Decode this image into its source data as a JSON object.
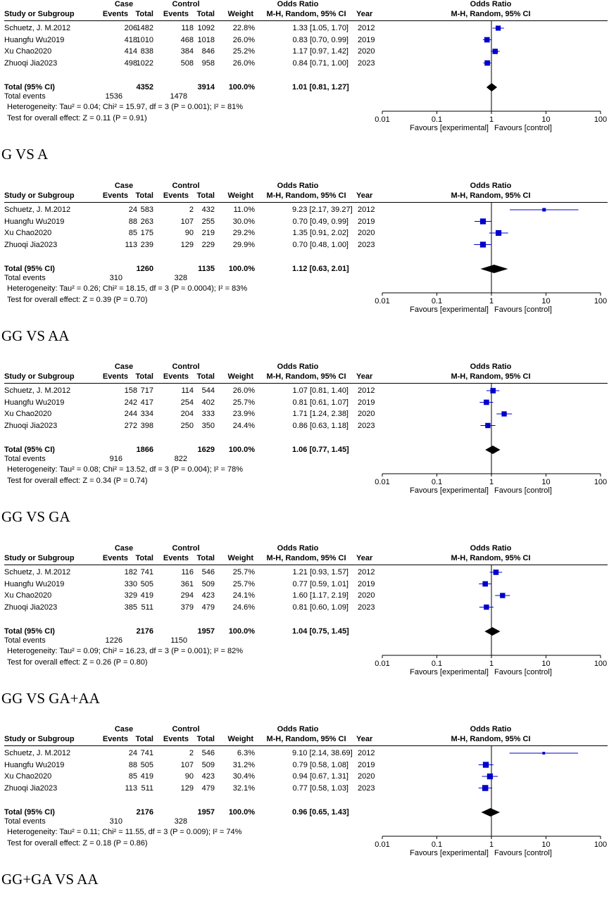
{
  "colors": {
    "marker": "#0000cc",
    "diamond": "#000000",
    "axis": "#000000"
  },
  "headers": {
    "case": "Case",
    "control": "Control",
    "odds_ratio": "Odds Ratio",
    "study": "Study or Subgroup",
    "events": "Events",
    "total": "Total",
    "weight": "Weight",
    "method": "M-H, Random, 95% CI",
    "year": "Year",
    "plot_title": "Odds Ratio",
    "plot_method": "M-H, Random, 95% CI"
  },
  "labels": {
    "total_ci": "Total (95% CI)",
    "total_events": "Total events",
    "favours_left": "Favours [experimental]",
    "favours_right": "Favours [control]"
  },
  "axis_ticks": [
    "0.01",
    "0.1",
    "1",
    "10",
    "100"
  ],
  "chart_data": [
    {
      "type": "forest",
      "title": "G VS A",
      "xscale": "log",
      "xlim": [
        0.01,
        100
      ],
      "studies": [
        {
          "name": "Schuetz, J. M.2012",
          "case_events": "206",
          "case_total": "1482",
          "ctrl_events": "118",
          "ctrl_total": "1092",
          "weight": "22.8%",
          "ci": "1.33 [1.05, 1.70]",
          "year": "2012",
          "or": 1.33,
          "lo": 1.05,
          "hi": 1.7
        },
        {
          "name": "Huangfu Wu2019",
          "case_events": "418",
          "case_total": "1010",
          "ctrl_events": "468",
          "ctrl_total": "1018",
          "weight": "26.0%",
          "ci": "0.83 [0.70, 0.99]",
          "year": "2019",
          "or": 0.83,
          "lo": 0.7,
          "hi": 0.99
        },
        {
          "name": "Xu Chao2020",
          "case_events": "414",
          "case_total": "838",
          "ctrl_events": "384",
          "ctrl_total": "846",
          "weight": "25.2%",
          "ci": "1.17 [0.97, 1.42]",
          "year": "2020",
          "or": 1.17,
          "lo": 0.97,
          "hi": 1.42
        },
        {
          "name": "Zhuoqi Jia2023",
          "case_events": "498",
          "case_total": "1022",
          "ctrl_events": "508",
          "ctrl_total": "958",
          "weight": "26.0%",
          "ci": "0.84 [0.71, 1.00]",
          "year": "2023",
          "or": 0.84,
          "lo": 0.71,
          "hi": 1.0
        }
      ],
      "total": {
        "case_total": "4352",
        "ctrl_total": "3914",
        "weight": "100.0%",
        "ci": "1.01 [0.81, 1.27]",
        "or": 1.01,
        "lo": 0.81,
        "hi": 1.27
      },
      "events": {
        "case": "1536",
        "ctrl": "1478"
      },
      "heterogeneity": "Heterogeneity: Tau² = 0.04; Chi² = 15.97, df = 3 (P = 0.001); I² = 81%",
      "overall_effect": "Test for overall effect: Z = 0.11 (P = 0.91)"
    },
    {
      "type": "forest",
      "title": "GG VS AA",
      "xscale": "log",
      "xlim": [
        0.01,
        100
      ],
      "studies": [
        {
          "name": "Schuetz, J. M.2012",
          "case_events": "24",
          "case_total": "583",
          "ctrl_events": "2",
          "ctrl_total": "432",
          "weight": "11.0%",
          "ci": "9.23 [2.17, 39.27]",
          "year": "2012",
          "or": 9.23,
          "lo": 2.17,
          "hi": 39.27
        },
        {
          "name": "Huangfu Wu2019",
          "case_events": "88",
          "case_total": "263",
          "ctrl_events": "107",
          "ctrl_total": "255",
          "weight": "30.0%",
          "ci": "0.70 [0.49, 0.99]",
          "year": "2019",
          "or": 0.7,
          "lo": 0.49,
          "hi": 0.99
        },
        {
          "name": "Xu Chao2020",
          "case_events": "85",
          "case_total": "175",
          "ctrl_events": "90",
          "ctrl_total": "219",
          "weight": "29.2%",
          "ci": "1.35 [0.91, 2.02]",
          "year": "2020",
          "or": 1.35,
          "lo": 0.91,
          "hi": 2.02
        },
        {
          "name": "Zhuoqi Jia2023",
          "case_events": "113",
          "case_total": "239",
          "ctrl_events": "129",
          "ctrl_total": "229",
          "weight": "29.9%",
          "ci": "0.70 [0.48, 1.00]",
          "year": "2023",
          "or": 0.7,
          "lo": 0.48,
          "hi": 1.0
        }
      ],
      "total": {
        "case_total": "1260",
        "ctrl_total": "1135",
        "weight": "100.0%",
        "ci": "1.12 [0.63, 2.01]",
        "or": 1.12,
        "lo": 0.63,
        "hi": 2.01
      },
      "events": {
        "case": "310",
        "ctrl": "328"
      },
      "heterogeneity": "Heterogeneity: Tau² = 0.26; Chi² = 18.15, df = 3 (P = 0.0004); I² = 83%",
      "overall_effect": "Test for overall effect: Z = 0.39 (P = 0.70)"
    },
    {
      "type": "forest",
      "title": "GG VS GA",
      "xscale": "log",
      "xlim": [
        0.01,
        100
      ],
      "studies": [
        {
          "name": "Schuetz, J. M.2012",
          "case_events": "158",
          "case_total": "717",
          "ctrl_events": "114",
          "ctrl_total": "544",
          "weight": "26.0%",
          "ci": "1.07 [0.81, 1.40]",
          "year": "2012",
          "or": 1.07,
          "lo": 0.81,
          "hi": 1.4
        },
        {
          "name": "Huangfu Wu2019",
          "case_events": "242",
          "case_total": "417",
          "ctrl_events": "254",
          "ctrl_total": "402",
          "weight": "25.7%",
          "ci": "0.81 [0.61, 1.07]",
          "year": "2019",
          "or": 0.81,
          "lo": 0.61,
          "hi": 1.07
        },
        {
          "name": "Xu Chao2020",
          "case_events": "244",
          "case_total": "334",
          "ctrl_events": "204",
          "ctrl_total": "333",
          "weight": "23.9%",
          "ci": "1.71 [1.24, 2.38]",
          "year": "2020",
          "or": 1.71,
          "lo": 1.24,
          "hi": 2.38
        },
        {
          "name": "Zhuoqi Jia2023",
          "case_events": "272",
          "case_total": "398",
          "ctrl_events": "250",
          "ctrl_total": "350",
          "weight": "24.4%",
          "ci": "0.86 [0.63, 1.18]",
          "year": "2023",
          "or": 0.86,
          "lo": 0.63,
          "hi": 1.18
        }
      ],
      "total": {
        "case_total": "1866",
        "ctrl_total": "1629",
        "weight": "100.0%",
        "ci": "1.06 [0.77, 1.45]",
        "or": 1.06,
        "lo": 0.77,
        "hi": 1.45
      },
      "events": {
        "case": "916",
        "ctrl": "822"
      },
      "heterogeneity": "Heterogeneity: Tau² = 0.08; Chi² = 13.52, df = 3 (P = 0.004); I² = 78%",
      "overall_effect": "Test for overall effect: Z = 0.34 (P = 0.74)"
    },
    {
      "type": "forest",
      "title": "GG VS GA+AA",
      "xscale": "log",
      "xlim": [
        0.01,
        100
      ],
      "studies": [
        {
          "name": "Schuetz, J. M.2012",
          "case_events": "182",
          "case_total": "741",
          "ctrl_events": "116",
          "ctrl_total": "546",
          "weight": "25.7%",
          "ci": "1.21 [0.93, 1.57]",
          "year": "2012",
          "or": 1.21,
          "lo": 0.93,
          "hi": 1.57
        },
        {
          "name": "Huangfu Wu2019",
          "case_events": "330",
          "case_total": "505",
          "ctrl_events": "361",
          "ctrl_total": "509",
          "weight": "25.7%",
          "ci": "0.77 [0.59, 1.01]",
          "year": "2019",
          "or": 0.77,
          "lo": 0.59,
          "hi": 1.01
        },
        {
          "name": "Xu Chao2020",
          "case_events": "329",
          "case_total": "419",
          "ctrl_events": "294",
          "ctrl_total": "423",
          "weight": "24.1%",
          "ci": "1.60 [1.17, 2.19]",
          "year": "2020",
          "or": 1.6,
          "lo": 1.17,
          "hi": 2.19
        },
        {
          "name": "Zhuoqi Jia2023",
          "case_events": "385",
          "case_total": "511",
          "ctrl_events": "379",
          "ctrl_total": "479",
          "weight": "24.6%",
          "ci": "0.81 [0.60, 1.09]",
          "year": "2023",
          "or": 0.81,
          "lo": 0.6,
          "hi": 1.09
        }
      ],
      "total": {
        "case_total": "2176",
        "ctrl_total": "1957",
        "weight": "100.0%",
        "ci": "1.04 [0.75, 1.45]",
        "or": 1.04,
        "lo": 0.75,
        "hi": 1.45
      },
      "events": {
        "case": "1226",
        "ctrl": "1150"
      },
      "heterogeneity": "Heterogeneity: Tau² = 0.09; Chi² = 16.23, df = 3 (P = 0.001); I² = 82%",
      "overall_effect": "Test for overall effect: Z = 0.26 (P = 0.80)"
    },
    {
      "type": "forest",
      "title": "GG+GA VS AA",
      "xscale": "log",
      "xlim": [
        0.01,
        100
      ],
      "studies": [
        {
          "name": "Schuetz, J. M.2012",
          "case_events": "24",
          "case_total": "741",
          "ctrl_events": "2",
          "ctrl_total": "546",
          "weight": "6.3%",
          "ci": "9.10 [2.14, 38.69]",
          "year": "2012",
          "or": 9.1,
          "lo": 2.14,
          "hi": 38.69
        },
        {
          "name": "Huangfu Wu2019",
          "case_events": "88",
          "case_total": "505",
          "ctrl_events": "107",
          "ctrl_total": "509",
          "weight": "31.2%",
          "ci": "0.79 [0.58, 1.08]",
          "year": "2019",
          "or": 0.79,
          "lo": 0.58,
          "hi": 1.08
        },
        {
          "name": "Xu Chao2020",
          "case_events": "85",
          "case_total": "419",
          "ctrl_events": "90",
          "ctrl_total": "423",
          "weight": "30.4%",
          "ci": "0.94 [0.67, 1.31]",
          "year": "2020",
          "or": 0.94,
          "lo": 0.67,
          "hi": 1.31
        },
        {
          "name": "Zhuoqi Jia2023",
          "case_events": "113",
          "case_total": "511",
          "ctrl_events": "129",
          "ctrl_total": "479",
          "weight": "32.1%",
          "ci": "0.77 [0.58, 1.03]",
          "year": "2023",
          "or": 0.77,
          "lo": 0.58,
          "hi": 1.03
        }
      ],
      "total": {
        "case_total": "2176",
        "ctrl_total": "1957",
        "weight": "100.0%",
        "ci": "0.96 [0.65, 1.43]",
        "or": 0.96,
        "lo": 0.65,
        "hi": 1.43
      },
      "events": {
        "case": "310",
        "ctrl": "328"
      },
      "heterogeneity": "Heterogeneity: Tau² = 0.11; Chi² = 11.55, df = 3 (P = 0.009); I² = 74%",
      "overall_effect": "Test for overall effect: Z = 0.18 (P = 0.86)"
    }
  ]
}
